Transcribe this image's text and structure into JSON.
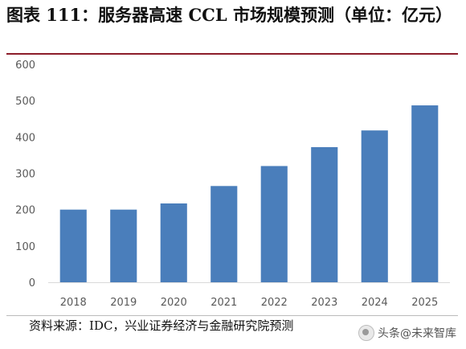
{
  "header": {
    "title": "图表 111：服务器高速 CCL 市场规模预测（单位：亿元）"
  },
  "chart_data": {
    "type": "bar",
    "categories": [
      "2018",
      "2019",
      "2020",
      "2021",
      "2022",
      "2023",
      "2024",
      "2025"
    ],
    "values": [
      200,
      200,
      217,
      265,
      320,
      372,
      418,
      487
    ],
    "ylim": [
      0,
      600
    ],
    "yticks": [
      0,
      100,
      200,
      300,
      400,
      500,
      600
    ],
    "grid": false,
    "legend": "none",
    "bar_color": "#4a7ebb",
    "title": "",
    "xlabel": "",
    "ylabel": ""
  },
  "footer": {
    "source": "资料来源：IDC，兴业证券经济与金融研究院预测",
    "watermark": "头条@未来智库"
  }
}
